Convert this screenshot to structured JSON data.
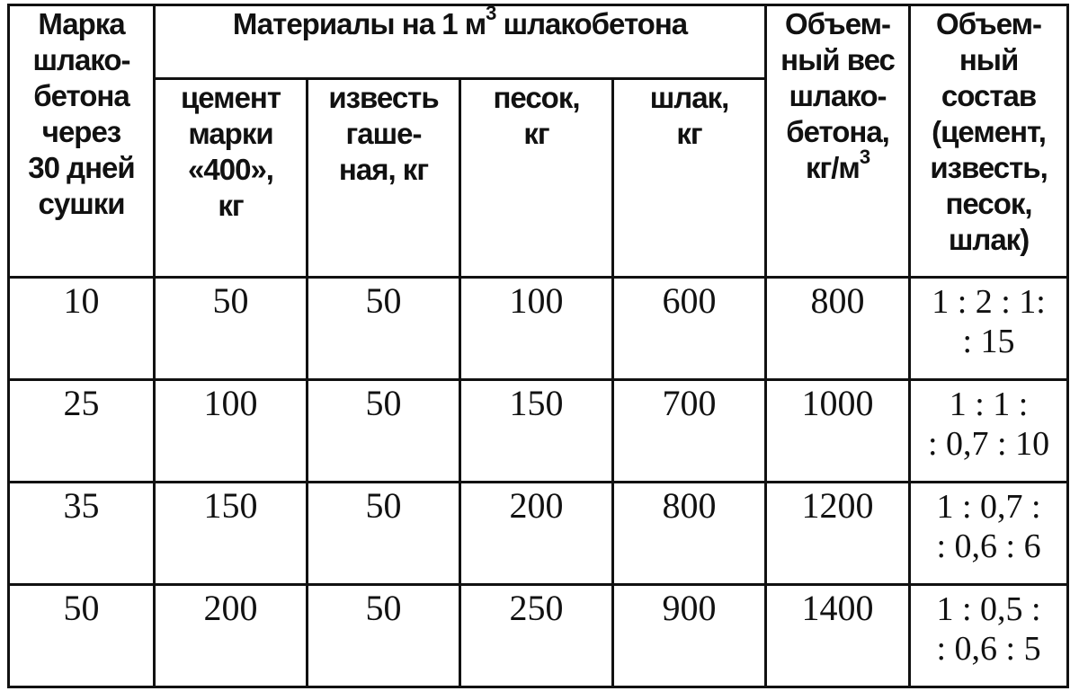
{
  "table": {
    "header": {
      "grade_lines": [
        "Марка",
        "шлако-",
        "бетона",
        "через",
        "30 дней",
        "сушки"
      ],
      "group_label": "Материалы на 1 м",
      "group_sup": "3",
      "group_label_tail": " шлакобетона",
      "cement_lines": [
        "цемент",
        "марки",
        "«400»,",
        "кг"
      ],
      "lime_lines": [
        "известь",
        "гаше-",
        "ная, кг"
      ],
      "sand_lines": [
        "песок,",
        "кг"
      ],
      "slag_lines": [
        "шлак,",
        "кг"
      ],
      "weight_lines": [
        "Объем-",
        "ный вес",
        "шлако-",
        "бетона,"
      ],
      "weight_unit": "кг/м",
      "weight_unit_sup": "3",
      "ratio_lines": [
        "Объем-",
        "ный",
        "состав",
        "(цемент,",
        "известь,",
        "песок,",
        "шлак)"
      ]
    },
    "rows": [
      {
        "grade": "10",
        "cement": "50",
        "lime": "50",
        "sand": "100",
        "slag": "600",
        "weight": "800",
        "ratio_lines": [
          "1 : 2 : 1:",
          ": 15"
        ]
      },
      {
        "grade": "25",
        "cement": "100",
        "lime": "50",
        "sand": "150",
        "slag": "700",
        "weight": "1000",
        "ratio_lines": [
          "1 : 1 :",
          ": 0,7 : 10"
        ]
      },
      {
        "grade": "35",
        "cement": "150",
        "lime": "50",
        "sand": "200",
        "slag": "800",
        "weight": "1200",
        "ratio_lines": [
          "1 : 0,7 :",
          ": 0,6 : 6"
        ]
      },
      {
        "grade": "50",
        "cement": "200",
        "lime": "50",
        "sand": "250",
        "slag": "900",
        "weight": "1400",
        "ratio_lines": [
          "1 : 0,5 :",
          ": 0,6 : 5"
        ]
      }
    ]
  }
}
